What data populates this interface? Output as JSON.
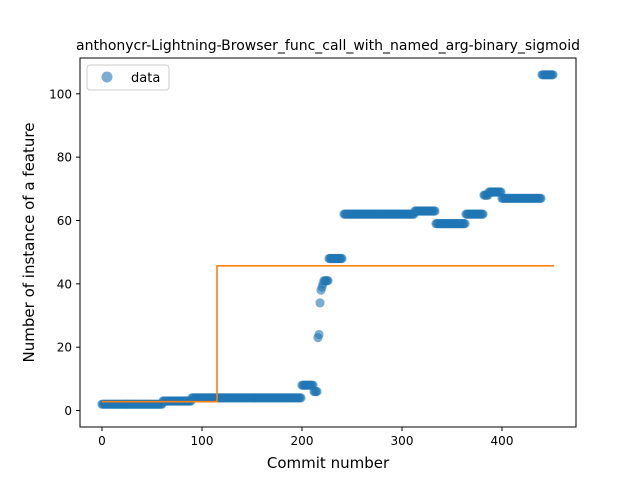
{
  "chart_data": {
    "type": "scatter",
    "title": "anthonycr-Lightning-Browser_func_call_with_named_arg-binary_sigmoid",
    "xlabel": "Commit number",
    "ylabel": "Number of instance of a feature",
    "xlim": [
      -22,
      474
    ],
    "ylim": [
      -5.2,
      111.3
    ],
    "xticks": [
      0,
      100,
      200,
      300,
      400
    ],
    "yticks": [
      0,
      20,
      40,
      60,
      80,
      100
    ],
    "legend": {
      "placement": "top-left",
      "entries": [
        {
          "label": "data",
          "marker": "circle"
        }
      ]
    },
    "colors": {
      "data": "#1f77b4",
      "fit": "#ff7f0e"
    },
    "series": [
      {
        "name": "data",
        "kind": "points",
        "segments": [
          {
            "x_start": 0,
            "x_end": 60,
            "y": 2
          },
          {
            "x_start": 61,
            "x_end": 89,
            "y": 3
          },
          {
            "x_start": 90,
            "x_end": 199,
            "y": 4
          },
          {
            "x_start": 200,
            "x_end": 211,
            "y": 8
          },
          {
            "x_start": 212,
            "x_end": 215,
            "y": 6
          },
          {
            "x_start": 227,
            "x_end": 240,
            "y": 48
          },
          {
            "x_start": 242,
            "x_end": 312,
            "y": 62
          },
          {
            "x_start": 313,
            "x_end": 333,
            "y": 63
          },
          {
            "x_start": 334,
            "x_end": 363,
            "y": 59
          },
          {
            "x_start": 364,
            "x_end": 381,
            "y": 62
          },
          {
            "x_start": 382,
            "x_end": 386,
            "y": 68
          },
          {
            "x_start": 387,
            "x_end": 399,
            "y": 69
          },
          {
            "x_start": 400,
            "x_end": 439,
            "y": 67
          },
          {
            "x_start": 440,
            "x_end": 451,
            "y": 106
          }
        ],
        "points": [
          [
            216,
            23
          ],
          [
            217,
            24
          ],
          [
            218,
            34
          ],
          [
            219,
            38
          ],
          [
            220,
            39
          ],
          [
            221,
            40
          ],
          [
            222,
            41
          ],
          [
            223,
            41
          ],
          [
            224,
            41
          ],
          [
            225,
            41
          ],
          [
            226,
            41
          ]
        ]
      },
      {
        "name": "fit",
        "kind": "line",
        "x": [
          0,
          115,
          115,
          452
        ],
        "y": [
          2.8,
          2.8,
          45.7,
          45.7
        ]
      }
    ]
  }
}
